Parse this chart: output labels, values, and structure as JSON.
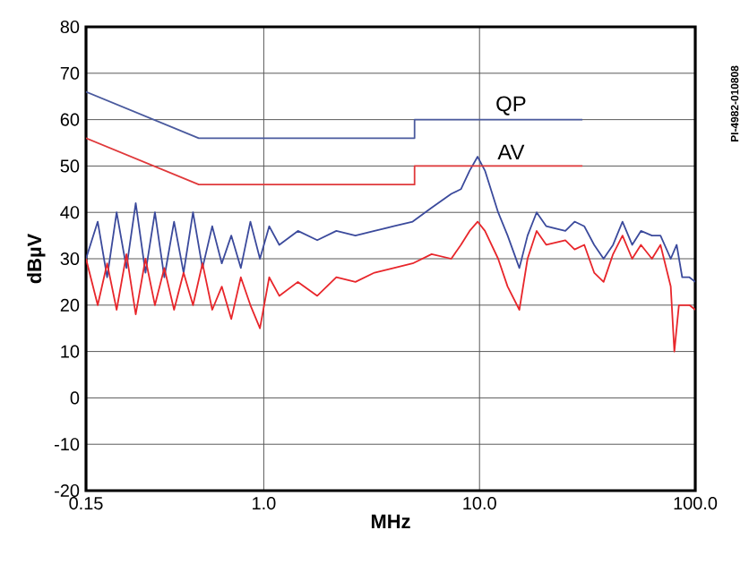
{
  "chart_data": {
    "type": "line",
    "xlabel": "MHz",
    "ylabel": "dBµV",
    "log": "x",
    "grid": true,
    "xlim": [
      0.15,
      100
    ],
    "xticks": [
      0.15,
      {
        "value": 1,
        "label": "1.0"
      },
      {
        "value": 10,
        "label": "10.0"
      },
      {
        "value": 100,
        "label": "100.0"
      }
    ],
    "ylim": [
      -20,
      80
    ],
    "yticks": [
      -20,
      -10,
      0,
      10,
      20,
      30,
      40,
      50,
      60,
      70,
      80
    ],
    "annotations": [
      {
        "text": "QP",
        "x": 14,
        "y": 63
      },
      {
        "text": "AV",
        "x": 14,
        "y": 53
      },
      "PI-4982-010808"
    ],
    "series": [
      {
        "color": "#3b4a9c",
        "x": [
          0.15,
          0.17,
          0.188,
          0.208,
          0.231,
          0.255,
          0.283,
          0.313,
          0.346,
          0.384,
          0.425,
          0.47,
          0.52,
          0.577,
          0.639,
          0.707,
          0.783,
          0.867,
          0.96,
          1.06,
          1.18,
          1.44,
          1.77,
          2.17,
          2.66,
          3.26,
          4.0,
          4.9,
          6.0,
          7.4,
          8.2,
          9.0,
          9.8,
          10.6,
          12.2,
          13.5,
          15.3,
          16.7,
          18.4,
          20.4,
          25,
          27.6,
          30.6,
          34,
          37.6,
          41.6,
          46,
          51,
          56,
          63,
          69,
          77,
          82,
          87,
          94,
          100
        ],
        "values": [
          30,
          38,
          26,
          40,
          28,
          42,
          27,
          40,
          26,
          38,
          27,
          40,
          28,
          37,
          29,
          35,
          28,
          38,
          30,
          37,
          33,
          36,
          34,
          36,
          35,
          36,
          37,
          38,
          41,
          44,
          45,
          49,
          52,
          49,
          40,
          35,
          28,
          35,
          40,
          37,
          36,
          38,
          37,
          33,
          30,
          33,
          38,
          33,
          36,
          35,
          35,
          30,
          33,
          26,
          26,
          25
        ]
      },
      {
        "color": "#e8262b",
        "x": [
          0.15,
          0.17,
          0.188,
          0.208,
          0.231,
          0.255,
          0.283,
          0.313,
          0.346,
          0.384,
          0.425,
          0.47,
          0.52,
          0.577,
          0.639,
          0.707,
          0.783,
          0.867,
          0.96,
          1.06,
          1.18,
          1.44,
          1.77,
          2.17,
          2.66,
          3.26,
          4.0,
          4.9,
          6.0,
          7.4,
          8.2,
          9.0,
          9.8,
          10.6,
          12.2,
          13.5,
          15.3,
          16.7,
          18.4,
          20.4,
          25,
          27.6,
          30.6,
          34,
          37.6,
          41.6,
          46,
          51,
          56,
          63,
          69,
          77,
          80,
          84,
          94,
          100
        ],
        "values": [
          30,
          20,
          29,
          19,
          31,
          18,
          30,
          20,
          28,
          19,
          27,
          20,
          29,
          19,
          24,
          17,
          26,
          20,
          15,
          26,
          22,
          25,
          22,
          26,
          25,
          27,
          28,
          29,
          31,
          30,
          33,
          36,
          38,
          36,
          30,
          24,
          19,
          30,
          36,
          33,
          34,
          32,
          33,
          27,
          25,
          31,
          35,
          30,
          33,
          30,
          33,
          24,
          10,
          20,
          20,
          19
        ]
      },
      {
        "color": "#4a5a9e",
        "x": [
          0.15,
          0.5,
          5,
          5,
          30
        ],
        "values": [
          66,
          56,
          56,
          60,
          60
        ]
      },
      {
        "color": "#e0393b",
        "x": [
          0.15,
          0.5,
          5,
          5,
          30
        ],
        "values": [
          56,
          46,
          46,
          50,
          50
        ]
      }
    ]
  }
}
